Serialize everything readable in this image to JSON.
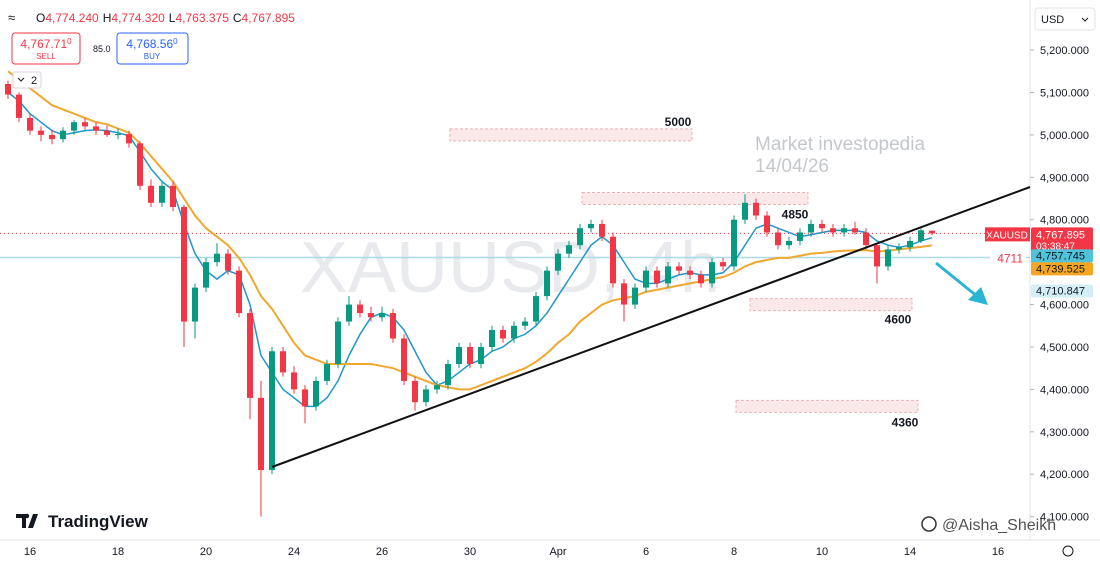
{
  "toolbar": {
    "ohlc": [
      {
        "key": "O",
        "value": "4,774.240"
      },
      {
        "key": "H",
        "value": "4,774.320"
      },
      {
        "key": "L",
        "value": "4,763.375"
      },
      {
        "key": "C",
        "value": "4,767.895"
      }
    ],
    "sell_price": "4,767.71",
    "sell_sup": "0",
    "sell_label": "SELL",
    "spread": "85.0",
    "buy_price": "4,768.56",
    "buy_sup": "0",
    "buy_label": "BUY",
    "indicator_count": "2",
    "currency": "USD"
  },
  "brand": "TradingView",
  "author": "@Aisha_Sheikh",
  "chart_data": {
    "type": "candlestick",
    "watermark": "XAUUSD, 4h",
    "note_line1": "Market investopedia",
    "note_line2": "14/04/26",
    "symbol_tag": "XAUUSD",
    "last_price_label": "4,767.895",
    "countdown": "03:38:47",
    "up_color": "#089981",
    "down_color": "#f23645",
    "grid": false,
    "ylim": [
      4045,
      5318
    ],
    "yticks": [
      {
        "value": 5200,
        "label": "5,200.000"
      },
      {
        "value": 5100,
        "label": "5,100.000"
      },
      {
        "value": 5000,
        "label": "5,000.000"
      },
      {
        "value": 4900,
        "label": "4,900.000"
      },
      {
        "value": 4800,
        "label": "4,800.000"
      },
      {
        "value": 4700,
        "label": "4,700.000"
      },
      {
        "value": 4600,
        "label": "4,600.000"
      },
      {
        "value": 4500,
        "label": "4,500.000"
      },
      {
        "value": 4400,
        "label": "4,400.000"
      },
      {
        "value": 4300,
        "label": "4,300.000"
      },
      {
        "value": 4200,
        "label": "4,200.000"
      },
      {
        "value": 4100,
        "label": "4,100.000"
      }
    ],
    "categories": [
      null,
      null,
      "16",
      null,
      null,
      null,
      null,
      null,
      null,
      null,
      "18",
      null,
      null,
      null,
      null,
      null,
      null,
      null,
      "20",
      null,
      null,
      null,
      null,
      null,
      null,
      null,
      "24",
      null,
      null,
      null,
      null,
      null,
      null,
      null,
      "26",
      null,
      null,
      null,
      null,
      null,
      null,
      null,
      "30",
      null,
      null,
      null,
      null,
      null,
      null,
      null,
      "Apr",
      null,
      null,
      null,
      null,
      null,
      null,
      null,
      "6",
      null,
      null,
      null,
      null,
      null,
      null,
      null,
      "8",
      null,
      null,
      null,
      null,
      null,
      null,
      null,
      "10",
      null,
      null,
      null,
      null,
      null,
      null,
      null,
      "14",
      null,
      null,
      null,
      null,
      null,
      null,
      null,
      "16"
    ],
    "candles": [
      [
        5120,
        5128,
        5085,
        5095
      ],
      [
        5095,
        5100,
        5030,
        5040
      ],
      [
        5040,
        5048,
        5000,
        5010
      ],
      [
        5010,
        5020,
        4985,
        5000
      ],
      [
        5000,
        5012,
        4978,
        4990
      ],
      [
        4990,
        5018,
        4982,
        5010
      ],
      [
        5010,
        5035,
        5000,
        5030
      ],
      [
        5030,
        5040,
        5012,
        5020
      ],
      [
        5020,
        5030,
        5000,
        5010
      ],
      [
        5010,
        5022,
        4995,
        5000
      ],
      [
        5000,
        5015,
        4990,
        5002
      ],
      [
        5002,
        5010,
        4970,
        4980
      ],
      [
        4980,
        4985,
        4870,
        4880
      ],
      [
        4880,
        4895,
        4830,
        4840
      ],
      [
        4840,
        4890,
        4830,
        4880
      ],
      [
        4880,
        4890,
        4820,
        4830
      ],
      [
        4830,
        4835,
        4500,
        4560
      ],
      [
        4560,
        4650,
        4520,
        4640
      ],
      [
        4640,
        4710,
        4630,
        4700
      ],
      [
        4700,
        4745,
        4690,
        4720
      ],
      [
        4720,
        4730,
        4670,
        4680
      ],
      [
        4680,
        4690,
        4570,
        4580
      ],
      [
        4580,
        4590,
        4330,
        4380
      ],
      [
        4380,
        4420,
        4100,
        4210
      ],
      [
        4210,
        4500,
        4200,
        4490
      ],
      [
        4490,
        4500,
        4430,
        4440
      ],
      [
        4440,
        4455,
        4390,
        4400
      ],
      [
        4400,
        4410,
        4320,
        4360
      ],
      [
        4360,
        4430,
        4350,
        4420
      ],
      [
        4420,
        4470,
        4410,
        4460
      ],
      [
        4460,
        4570,
        4450,
        4560
      ],
      [
        4560,
        4620,
        4550,
        4600
      ],
      [
        4600,
        4610,
        4570,
        4580
      ],
      [
        4580,
        4595,
        4560,
        4570
      ],
      [
        4570,
        4595,
        4560,
        4580
      ],
      [
        4580,
        4590,
        4510,
        4520
      ],
      [
        4520,
        4530,
        4410,
        4420
      ],
      [
        4420,
        4430,
        4350,
        4370
      ],
      [
        4370,
        4410,
        4360,
        4400
      ],
      [
        4400,
        4420,
        4390,
        4410
      ],
      [
        4410,
        4470,
        4400,
        4460
      ],
      [
        4460,
        4510,
        4450,
        4500
      ],
      [
        4500,
        4510,
        4450,
        4460
      ],
      [
        4460,
        4510,
        4450,
        4500
      ],
      [
        4500,
        4550,
        4490,
        4540
      ],
      [
        4540,
        4550,
        4510,
        4520
      ],
      [
        4520,
        4560,
        4510,
        4550
      ],
      [
        4550,
        4570,
        4540,
        4560
      ],
      [
        4560,
        4630,
        4550,
        4620
      ],
      [
        4620,
        4690,
        4610,
        4680
      ],
      [
        4680,
        4730,
        4670,
        4720
      ],
      [
        4720,
        4750,
        4710,
        4740
      ],
      [
        4740,
        4790,
        4730,
        4780
      ],
      [
        4780,
        4800,
        4770,
        4790
      ],
      [
        4790,
        4800,
        4750,
        4760
      ],
      [
        4760,
        4770,
        4640,
        4650
      ],
      [
        4650,
        4660,
        4560,
        4600
      ],
      [
        4600,
        4650,
        4590,
        4640
      ],
      [
        4640,
        4690,
        4630,
        4680
      ],
      [
        4680,
        4690,
        4640,
        4650
      ],
      [
        4650,
        4700,
        4640,
        4690
      ],
      [
        4690,
        4700,
        4670,
        4680
      ],
      [
        4680,
        4690,
        4660,
        4670
      ],
      [
        4670,
        4680,
        4640,
        4650
      ],
      [
        4650,
        4710,
        4640,
        4700
      ],
      [
        4700,
        4710,
        4680,
        4690
      ],
      [
        4690,
        4810,
        4680,
        4800
      ],
      [
        4800,
        4860,
        4790,
        4840
      ],
      [
        4840,
        4850,
        4800,
        4810
      ],
      [
        4810,
        4820,
        4760,
        4770
      ],
      [
        4770,
        4780,
        4730,
        4740
      ],
      [
        4740,
        4760,
        4730,
        4750
      ],
      [
        4750,
        4780,
        4740,
        4770
      ],
      [
        4770,
        4800,
        4760,
        4790
      ],
      [
        4790,
        4800,
        4770,
        4780
      ],
      [
        4780,
        4790,
        4760,
        4770
      ],
      [
        4770,
        4790,
        4760,
        4780
      ],
      [
        4780,
        4795,
        4765,
        4770
      ],
      [
        4770,
        4780,
        4730,
        4740
      ],
      [
        4740,
        4745,
        4650,
        4690
      ],
      [
        4690,
        4740,
        4680,
        4730
      ],
      [
        4730,
        4745,
        4720,
        4735
      ],
      [
        4735,
        4760,
        4725,
        4750
      ],
      [
        4750,
        4780,
        4745,
        4775
      ],
      [
        4774.24,
        4774.32,
        4763.375,
        4767.895
      ],
      null,
      null,
      null,
      null,
      null,
      null
    ],
    "series": [
      {
        "color": "#2196c9",
        "last_label": "4,757.745",
        "label_color": "#4fc3d9",
        "values": [
          5100,
          5080,
          5050,
          5030,
          5010,
          5000,
          5005,
          5010,
          5012,
          5010,
          5005,
          4998,
          4960,
          4920,
          4890,
          4870,
          4790,
          4720,
          4680,
          4660,
          4680,
          4670,
          4600,
          4480,
          4440,
          4400,
          4380,
          4360,
          4360,
          4380,
          4420,
          4480,
          4530,
          4570,
          4580,
          4570,
          4540,
          4490,
          4440,
          4410,
          4420,
          4440,
          4460,
          4470,
          4490,
          4500,
          4520,
          4530,
          4550,
          4580,
          4620,
          4660,
          4700,
          4740,
          4760,
          4740,
          4700,
          4660,
          4650,
          4650,
          4660,
          4670,
          4675,
          4670,
          4670,
          4675,
          4700,
          4740,
          4780,
          4790,
          4780,
          4770,
          4760,
          4765,
          4770,
          4775,
          4775,
          4775,
          4770,
          4750,
          4740,
          4735,
          4740,
          4750,
          4757.745,
          null,
          null,
          null,
          null,
          null,
          null
        ]
      },
      {
        "color": "#f0a830",
        "last_label": "4,739.525",
        "label_color": "#f5a623",
        "values": [
          5150,
          5130,
          5110,
          5090,
          5070,
          5060,
          5050,
          5040,
          5030,
          5025,
          5015,
          5005,
          4980,
          4950,
          4920,
          4890,
          4850,
          4810,
          4780,
          4760,
          4740,
          4710,
          4670,
          4620,
          4590,
          4550,
          4510,
          4480,
          4470,
          4460,
          4460,
          4460,
          4460,
          4460,
          4455,
          4450,
          4440,
          4430,
          4420,
          4410,
          4405,
          4400,
          4400,
          4410,
          4420,
          4430,
          4440,
          4450,
          4465,
          4485,
          4510,
          4530,
          4560,
          4580,
          4600,
          4610,
          4615,
          4620,
          4630,
          4635,
          4640,
          4645,
          4650,
          4655,
          4660,
          4665,
          4675,
          4690,
          4700,
          4705,
          4710,
          4710,
          4715,
          4720,
          4722,
          4725,
          4727,
          4728,
          4728,
          4725,
          4727,
          4730,
          4733,
          4736,
          4739.525,
          null,
          null,
          null,
          null,
          null,
          null
        ]
      }
    ],
    "hline": {
      "value": 4710.847,
      "label": "4,710.847",
      "tag": "4711",
      "color": "#a9dbe8"
    },
    "zones": [
      {
        "level": 5000
      },
      {
        "level": 4850
      },
      {
        "level": 4600
      },
      {
        "level": 4360
      }
    ]
  }
}
